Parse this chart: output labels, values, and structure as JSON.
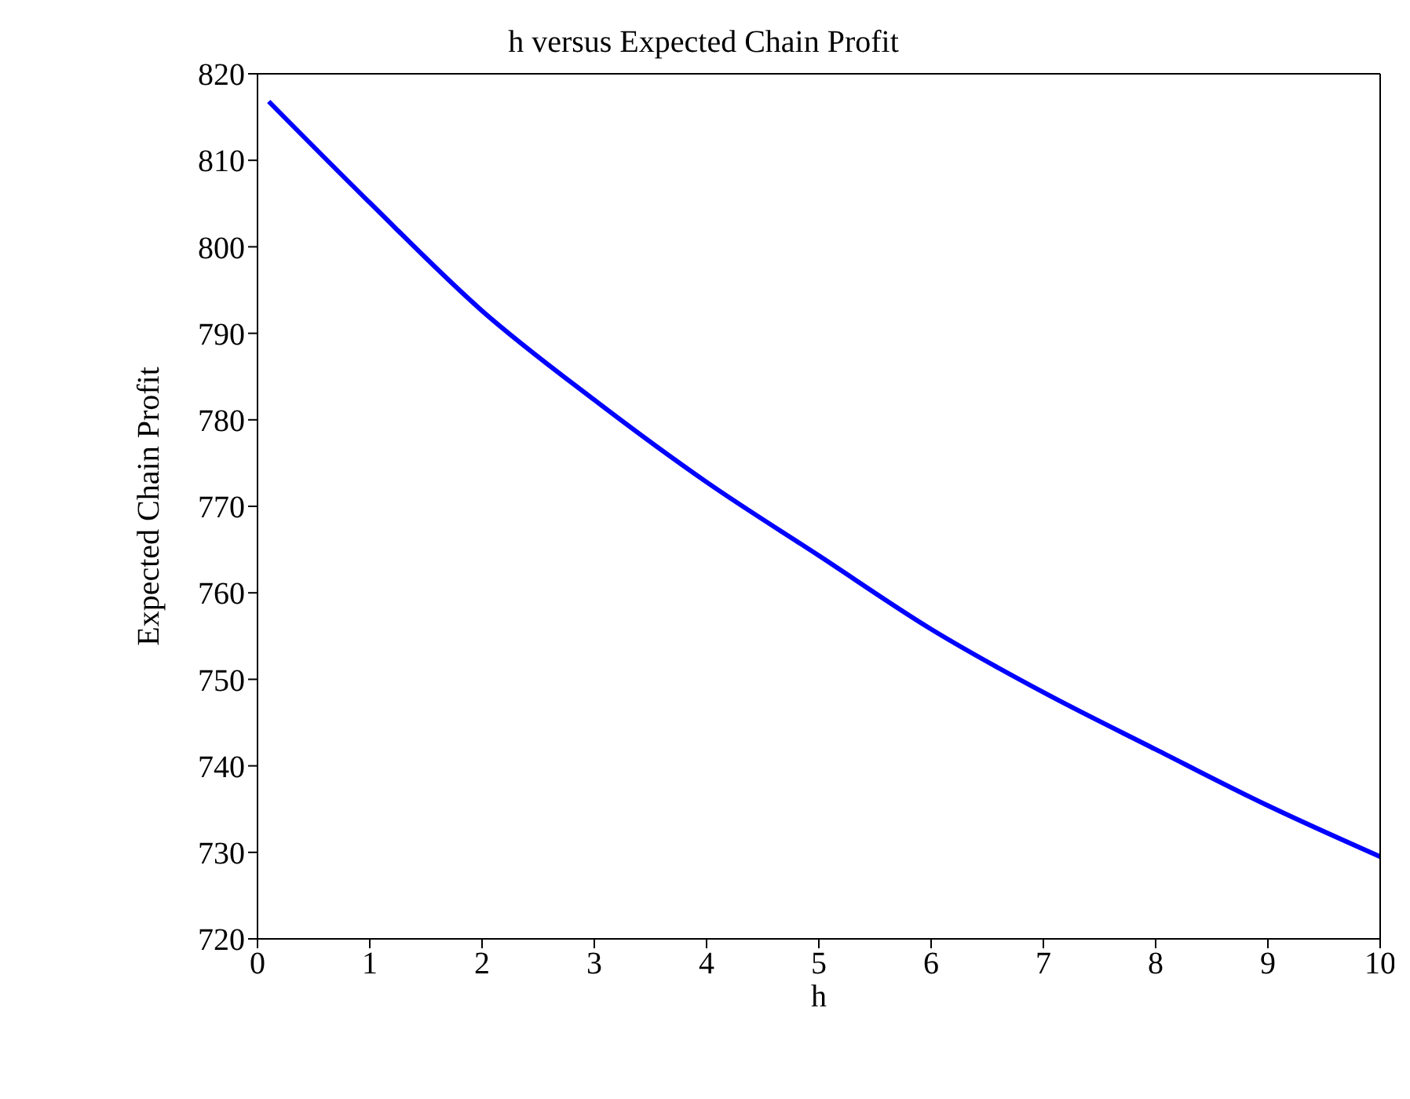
{
  "chart_data": {
    "type": "line",
    "title": "h versus Expected Chain Profit",
    "xlabel": "h",
    "ylabel": "Expected Chain Profit",
    "x": [
      0.1,
      1,
      2,
      3,
      4,
      5,
      6,
      7,
      8,
      9,
      10
    ],
    "series": [
      {
        "color": "#0000ff",
        "values": [
          816.8,
          805.1,
          792.6,
          782.3,
          772.8,
          764.3,
          755.8,
          748.5,
          741.9,
          735.4,
          729.5
        ]
      }
    ],
    "xlim": [
      0,
      10
    ],
    "xticks": [
      0,
      1,
      2,
      3,
      4,
      5,
      6,
      7,
      8,
      9,
      10
    ],
    "ylim": [
      720,
      820
    ],
    "yticks": [
      720,
      730,
      740,
      750,
      760,
      770,
      780,
      790,
      800,
      810,
      820
    ],
    "grid": false,
    "legend": false,
    "marker": "none",
    "line_style": "solid"
  }
}
